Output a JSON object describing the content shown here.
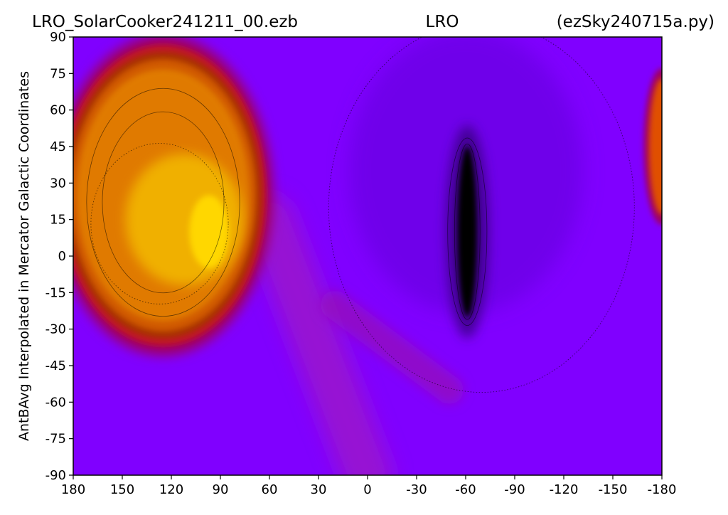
{
  "header": {
    "left": "LRO_SolarCooker241211_00.ezb",
    "center": "LRO",
    "right": "(ezSky240715a.py)"
  },
  "chart_data": {
    "type": "heatmap",
    "ylabel": "AntBAvg Interpolated in Mercator Galactic Coordinates",
    "xlabel": "",
    "xlim": [
      180,
      -180
    ],
    "ylim": [
      -90,
      90
    ],
    "x_ticks": [
      180,
      150,
      120,
      90,
      60,
      30,
      0,
      -30,
      -60,
      -90,
      -120,
      -150,
      -180
    ],
    "y_ticks": [
      90,
      75,
      60,
      45,
      30,
      15,
      0,
      -15,
      -30,
      -45,
      -60,
      -75,
      -90
    ],
    "colormap": "gnuplot (purple-red-orange-yellow)",
    "background_color": "#8000ff",
    "features": [
      {
        "kind": "hot-region",
        "x_center": 125,
        "y_center": 25,
        "x_half_width": 60,
        "y_half_width": 60,
        "peak_x": 97,
        "peak_y": 10,
        "color": "#ffd700"
      },
      {
        "kind": "hot-region",
        "x_center": -180,
        "y_center": 45,
        "x_half_width": 8,
        "y_half_width": 28,
        "color": "#e05000"
      },
      {
        "kind": "cold-region",
        "x_center": -61,
        "y_center": 10,
        "x_half_width": 6,
        "y_half_width": 35,
        "color": "#000000"
      },
      {
        "kind": "warm-band",
        "from": [
          60,
          15
        ],
        "to": [
          0,
          -90
        ],
        "color": "#a020c0"
      }
    ],
    "grid": false
  }
}
